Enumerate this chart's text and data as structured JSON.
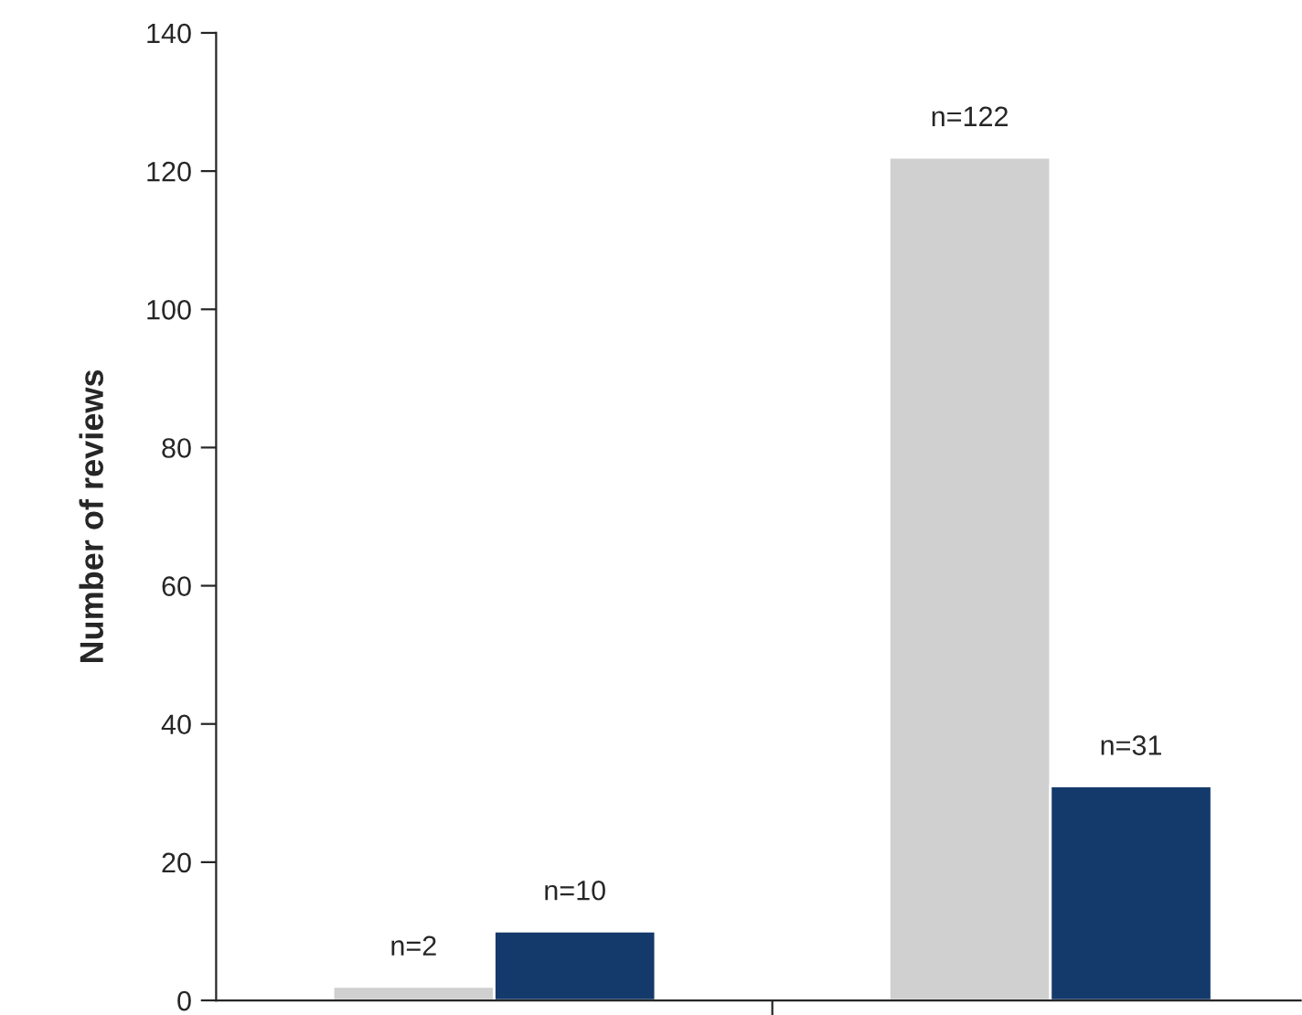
{
  "chart_data": {
    "type": "bar",
    "ylabel": "Number of reviews",
    "categories": [
      null,
      null
    ],
    "series": [
      {
        "color": "#d0d0d0",
        "values": [
          2,
          122
        ],
        "value_labels": [
          "n=2",
          "n=122"
        ]
      },
      {
        "color": "#143a6b",
        "values": [
          10,
          31
        ],
        "value_labels": [
          "n=10",
          "n=31"
        ]
      }
    ],
    "ylim": [
      0,
      140
    ],
    "yticks": [
      0,
      20,
      40,
      60,
      80,
      100,
      120,
      140
    ],
    "grid": false,
    "legend": false
  }
}
